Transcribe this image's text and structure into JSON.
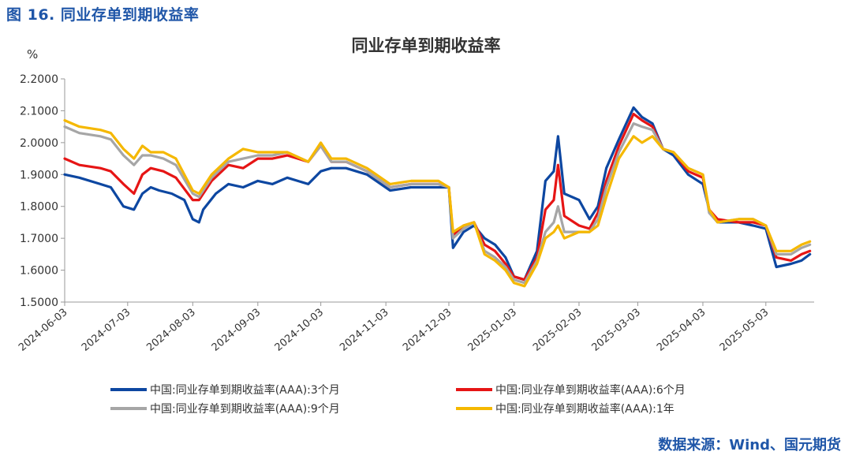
{
  "figure_caption": "图 16. 同业存单到期收益率",
  "source": "数据来源：Wind、国元期货",
  "chart_data": {
    "type": "line",
    "title": "同业存单到期收益率",
    "ylabel": "%",
    "ylim": [
      1.5,
      2.2
    ],
    "yticks": [
      "1.5000",
      "1.6000",
      "1.7000",
      "1.8000",
      "1.9000",
      "2.0000",
      "2.1000",
      "2.2000"
    ],
    "xlim": [
      "2024-06-03",
      "2025-05-26"
    ],
    "xticks": [
      "2024-06-03",
      "2024-07-03",
      "2024-08-03",
      "2024-09-03",
      "2024-10-03",
      "2024-11-03",
      "2024-12-03",
      "2025-01-03",
      "2025-02-03",
      "2025-03-03",
      "2025-04-03",
      "2025-05-03"
    ],
    "grid": false,
    "legend_position": "bottom",
    "series": [
      {
        "name": "中国:同业存单到期收益率(AAA):3个月",
        "color": "#0d47a1",
        "x": [
          "2024-06-03",
          "2024-06-10",
          "2024-06-20",
          "2024-06-25",
          "2024-07-01",
          "2024-07-06",
          "2024-07-10",
          "2024-07-14",
          "2024-07-18",
          "2024-07-24",
          "2024-07-30",
          "2024-08-03",
          "2024-08-06",
          "2024-08-08",
          "2024-08-14",
          "2024-08-20",
          "2024-08-27",
          "2024-09-03",
          "2024-09-10",
          "2024-09-17",
          "2024-09-27",
          "2024-10-03",
          "2024-10-08",
          "2024-10-15",
          "2024-10-25",
          "2024-11-05",
          "2024-11-15",
          "2024-11-20",
          "2024-11-28",
          "2024-12-03",
          "2024-12-05",
          "2024-12-10",
          "2024-12-15",
          "2024-12-20",
          "2024-12-25",
          "2024-12-30",
          "2025-01-03",
          "2025-01-08",
          "2025-01-14",
          "2025-01-18",
          "2025-01-22",
          "2025-01-24",
          "2025-01-27",
          "2025-02-03",
          "2025-02-08",
          "2025-02-12",
          "2025-02-16",
          "2025-02-22",
          "2025-03-01",
          "2025-03-05",
          "2025-03-10",
          "2025-03-15",
          "2025-03-20",
          "2025-03-27",
          "2025-04-03",
          "2025-04-06",
          "2025-04-10",
          "2025-04-20",
          "2025-04-27",
          "2025-05-03",
          "2025-05-08",
          "2025-05-15",
          "2025-05-20",
          "2025-05-24"
        ],
        "values": [
          1.9,
          1.89,
          1.87,
          1.86,
          1.8,
          1.79,
          1.84,
          1.86,
          1.85,
          1.84,
          1.82,
          1.76,
          1.75,
          1.79,
          1.84,
          1.87,
          1.86,
          1.88,
          1.87,
          1.89,
          1.87,
          1.91,
          1.92,
          1.92,
          1.9,
          1.85,
          1.86,
          1.86,
          1.86,
          1.86,
          1.67,
          1.72,
          1.74,
          1.7,
          1.68,
          1.64,
          1.58,
          1.57,
          1.66,
          1.88,
          1.91,
          2.02,
          1.84,
          1.82,
          1.76,
          1.8,
          1.92,
          2.01,
          2.11,
          2.08,
          2.06,
          1.98,
          1.96,
          1.9,
          1.87,
          1.79,
          1.75,
          1.75,
          1.74,
          1.73,
          1.61,
          1.62,
          1.63,
          1.65
        ]
      },
      {
        "name": "中国:同业存单到期收益率(AAA):6个月",
        "color": "#e61515",
        "x": [
          "2024-06-03",
          "2024-06-10",
          "2024-06-20",
          "2024-06-25",
          "2024-07-01",
          "2024-07-06",
          "2024-07-10",
          "2024-07-14",
          "2024-07-20",
          "2024-07-26",
          "2024-08-03",
          "2024-08-06",
          "2024-08-12",
          "2024-08-20",
          "2024-08-27",
          "2024-09-03",
          "2024-09-10",
          "2024-09-17",
          "2024-09-27",
          "2024-10-03",
          "2024-10-08",
          "2024-10-15",
          "2024-10-25",
          "2024-11-05",
          "2024-11-15",
          "2024-11-20",
          "2024-11-28",
          "2024-12-03",
          "2024-12-05",
          "2024-12-10",
          "2024-12-15",
          "2024-12-20",
          "2024-12-25",
          "2024-12-30",
          "2025-01-03",
          "2025-01-08",
          "2025-01-14",
          "2025-01-18",
          "2025-01-22",
          "2025-01-24",
          "2025-01-27",
          "2025-02-03",
          "2025-02-08",
          "2025-02-12",
          "2025-02-16",
          "2025-02-22",
          "2025-03-01",
          "2025-03-05",
          "2025-03-10",
          "2025-03-15",
          "2025-03-20",
          "2025-03-27",
          "2025-04-03",
          "2025-04-06",
          "2025-04-10",
          "2025-04-20",
          "2025-04-27",
          "2025-05-03",
          "2025-05-08",
          "2025-05-15",
          "2025-05-20",
          "2025-05-24"
        ],
        "values": [
          1.95,
          1.93,
          1.92,
          1.91,
          1.87,
          1.84,
          1.9,
          1.92,
          1.91,
          1.89,
          1.82,
          1.82,
          1.88,
          1.93,
          1.92,
          1.95,
          1.95,
          1.96,
          1.94,
          1.99,
          1.94,
          1.94,
          1.91,
          1.86,
          1.87,
          1.87,
          1.87,
          1.86,
          1.71,
          1.74,
          1.75,
          1.68,
          1.66,
          1.62,
          1.58,
          1.57,
          1.64,
          1.79,
          1.82,
          1.93,
          1.77,
          1.74,
          1.73,
          1.78,
          1.88,
          1.99,
          2.09,
          2.07,
          2.05,
          1.98,
          1.97,
          1.91,
          1.89,
          1.79,
          1.76,
          1.75,
          1.75,
          1.74,
          1.64,
          1.63,
          1.65,
          1.66
        ]
      },
      {
        "name": "中国:同业存单到期收益率(AAA):9个月",
        "color": "#a6a6a6",
        "x": [
          "2024-06-03",
          "2024-06-10",
          "2024-06-20",
          "2024-06-25",
          "2024-07-01",
          "2024-07-06",
          "2024-07-10",
          "2024-07-14",
          "2024-07-20",
          "2024-07-26",
          "2024-08-03",
          "2024-08-06",
          "2024-08-12",
          "2024-08-20",
          "2024-08-27",
          "2024-09-03",
          "2024-09-10",
          "2024-09-17",
          "2024-09-27",
          "2024-10-03",
          "2024-10-08",
          "2024-10-15",
          "2024-10-25",
          "2024-11-05",
          "2024-11-15",
          "2024-11-20",
          "2024-11-28",
          "2024-12-03",
          "2024-12-05",
          "2024-12-10",
          "2024-12-15",
          "2024-12-20",
          "2024-12-25",
          "2024-12-30",
          "2025-01-03",
          "2025-01-08",
          "2025-01-14",
          "2025-01-18",
          "2025-01-22",
          "2025-01-24",
          "2025-01-27",
          "2025-02-03",
          "2025-02-08",
          "2025-02-12",
          "2025-02-16",
          "2025-02-22",
          "2025-03-01",
          "2025-03-05",
          "2025-03-10",
          "2025-03-15",
          "2025-03-20",
          "2025-03-27",
          "2025-04-03",
          "2025-04-06",
          "2025-04-10",
          "2025-04-20",
          "2025-04-27",
          "2025-05-03",
          "2025-05-08",
          "2025-05-15",
          "2025-05-20",
          "2025-05-24"
        ],
        "values": [
          2.05,
          2.03,
          2.02,
          2.01,
          1.96,
          1.93,
          1.96,
          1.96,
          1.95,
          1.93,
          1.84,
          1.83,
          1.89,
          1.94,
          1.95,
          1.96,
          1.96,
          1.97,
          1.94,
          1.99,
          1.94,
          1.94,
          1.91,
          1.86,
          1.87,
          1.87,
          1.87,
          1.86,
          1.7,
          1.73,
          1.75,
          1.66,
          1.64,
          1.61,
          1.57,
          1.56,
          1.63,
          1.72,
          1.75,
          1.8,
          1.72,
          1.72,
          1.72,
          1.76,
          1.86,
          1.97,
          2.06,
          2.05,
          2.04,
          1.98,
          1.97,
          1.92,
          1.9,
          1.78,
          1.75,
          1.76,
          1.76,
          1.74,
          1.65,
          1.65,
          1.67,
          1.68
        ]
      },
      {
        "name": "中国:同业存单到期收益率(AAA):1年",
        "color": "#f5b800",
        "x": [
          "2024-06-03",
          "2024-06-10",
          "2024-06-20",
          "2024-06-25",
          "2024-07-01",
          "2024-07-06",
          "2024-07-10",
          "2024-07-14",
          "2024-07-20",
          "2024-07-26",
          "2024-08-03",
          "2024-08-06",
          "2024-08-12",
          "2024-08-20",
          "2024-08-27",
          "2024-09-03",
          "2024-09-10",
          "2024-09-17",
          "2024-09-27",
          "2024-10-03",
          "2024-10-08",
          "2024-10-15",
          "2024-10-25",
          "2024-11-05",
          "2024-11-15",
          "2024-11-20",
          "2024-11-28",
          "2024-12-03",
          "2024-12-05",
          "2024-12-10",
          "2024-12-15",
          "2024-12-20",
          "2024-12-25",
          "2024-12-30",
          "2025-01-03",
          "2025-01-08",
          "2025-01-14",
          "2025-01-18",
          "2025-01-22",
          "2025-01-24",
          "2025-01-27",
          "2025-02-03",
          "2025-02-08",
          "2025-02-12",
          "2025-02-16",
          "2025-02-22",
          "2025-03-01",
          "2025-03-05",
          "2025-03-10",
          "2025-03-15",
          "2025-03-20",
          "2025-03-27",
          "2025-04-03",
          "2025-04-06",
          "2025-04-10",
          "2025-04-20",
          "2025-04-27",
          "2025-05-03",
          "2025-05-08",
          "2025-05-15",
          "2025-05-20",
          "2025-05-24"
        ],
        "values": [
          2.07,
          2.05,
          2.04,
          2.03,
          1.98,
          1.95,
          1.99,
          1.97,
          1.97,
          1.95,
          1.85,
          1.84,
          1.9,
          1.95,
          1.98,
          1.97,
          1.97,
          1.97,
          1.94,
          2.0,
          1.95,
          1.95,
          1.92,
          1.87,
          1.88,
          1.88,
          1.88,
          1.86,
          1.72,
          1.74,
          1.75,
          1.65,
          1.63,
          1.6,
          1.56,
          1.55,
          1.62,
          1.7,
          1.72,
          1.74,
          1.7,
          1.72,
          1.72,
          1.74,
          1.83,
          1.95,
          2.02,
          2.0,
          2.02,
          1.98,
          1.97,
          1.92,
          1.9,
          1.79,
          1.75,
          1.76,
          1.76,
          1.74,
          1.66,
          1.66,
          1.68,
          1.69
        ]
      }
    ]
  }
}
